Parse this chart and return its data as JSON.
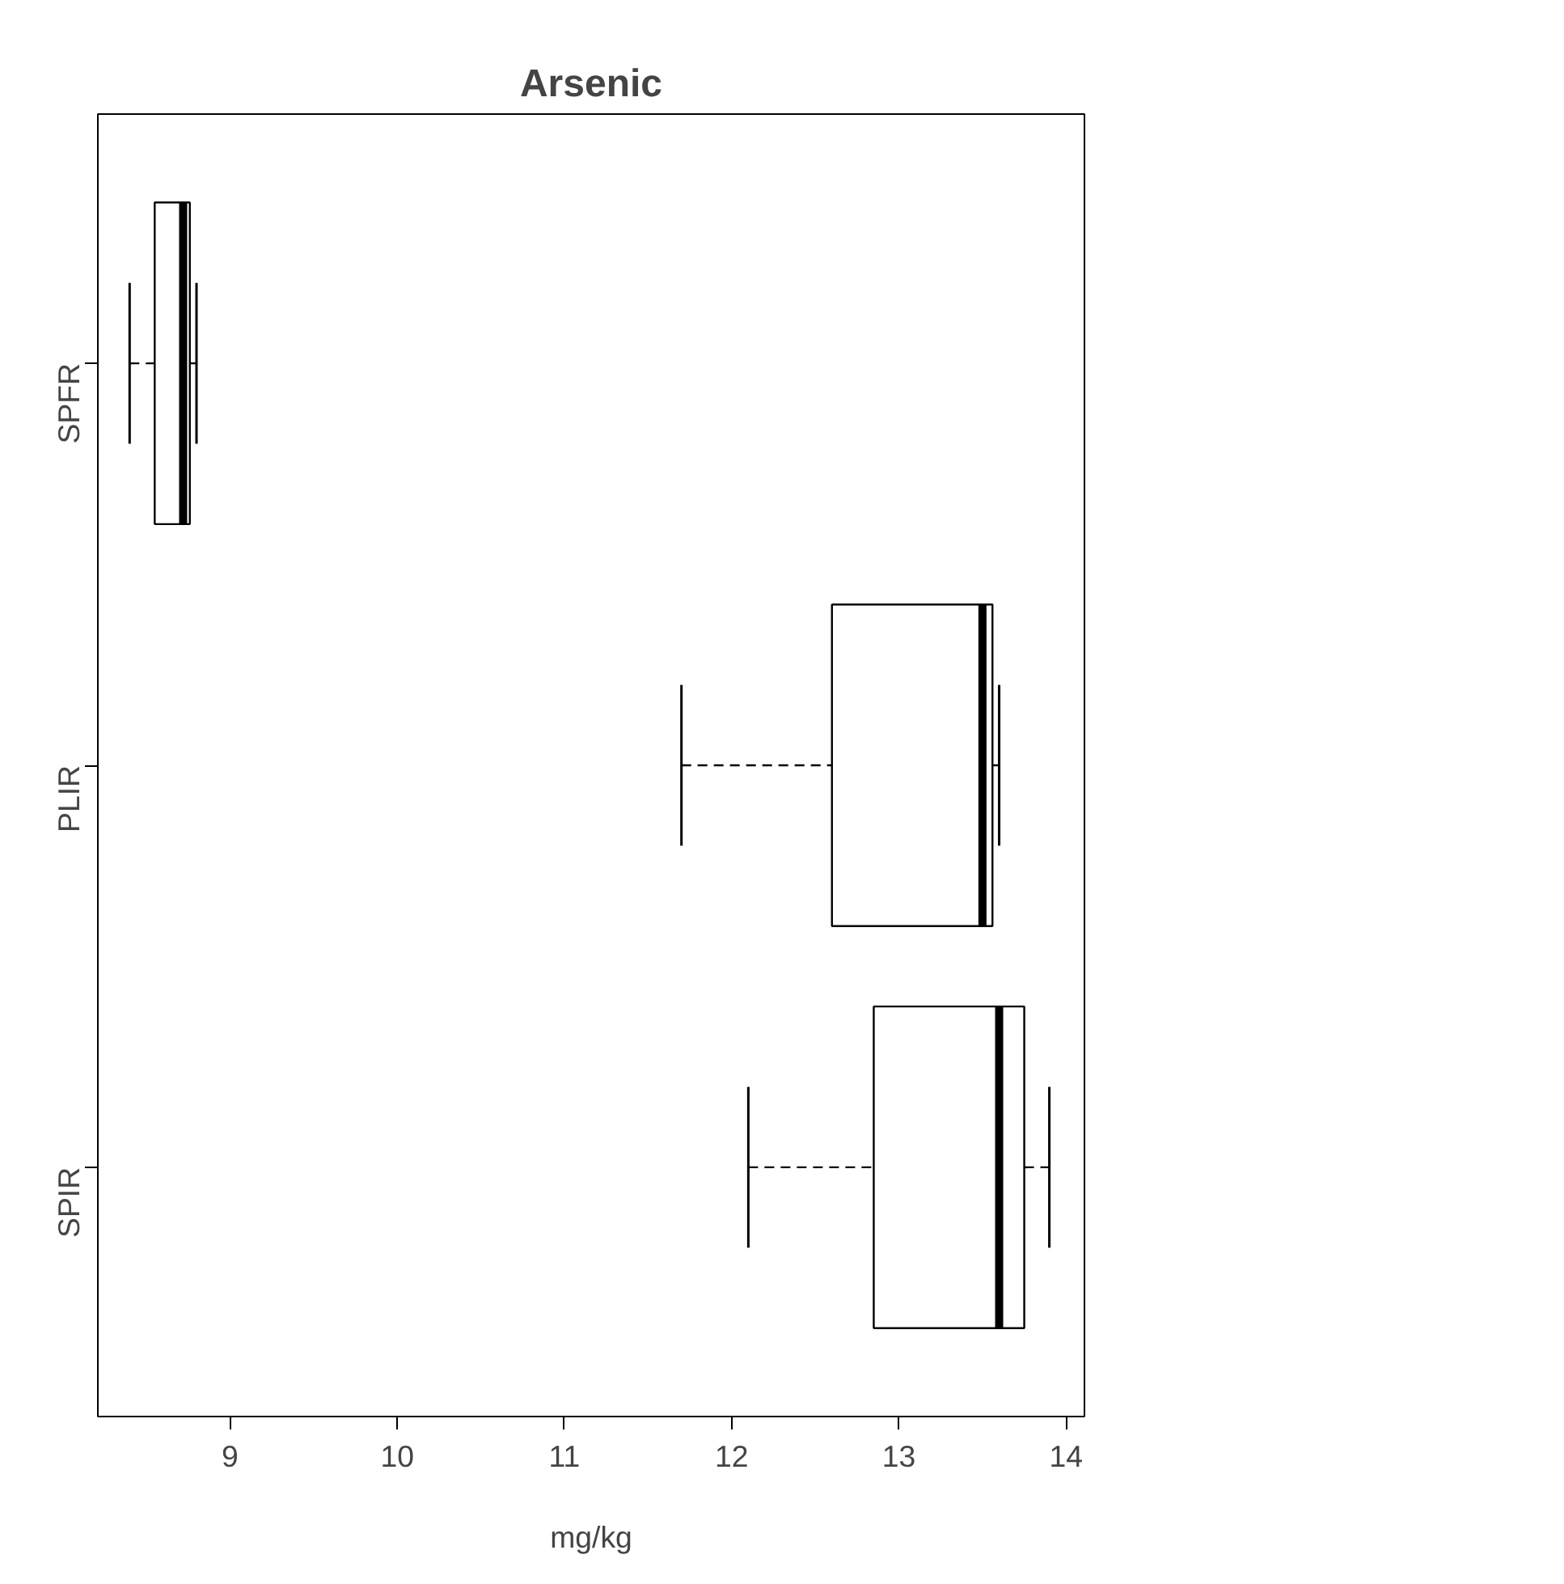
{
  "chart_data": {
    "type": "box",
    "title": "Arsenic",
    "xlabel": "mg/kg",
    "orientation": "horizontal",
    "categories": [
      "SPFR",
      "PLIR",
      "SPIR"
    ],
    "boxes": [
      {
        "low": 8.4,
        "q1": 8.55,
        "median": 8.72,
        "q3": 8.76,
        "high": 8.8
      },
      {
        "low": 11.7,
        "q1": 12.6,
        "median": 13.5,
        "q3": 13.56,
        "high": 13.6
      },
      {
        "low": 12.1,
        "q1": 12.85,
        "median": 13.6,
        "q3": 13.75,
        "high": 13.9
      }
    ],
    "xlim": [
      8.21,
      14.11
    ],
    "xticks": [
      9,
      10,
      11,
      12,
      13,
      14
    ],
    "grid": false
  }
}
